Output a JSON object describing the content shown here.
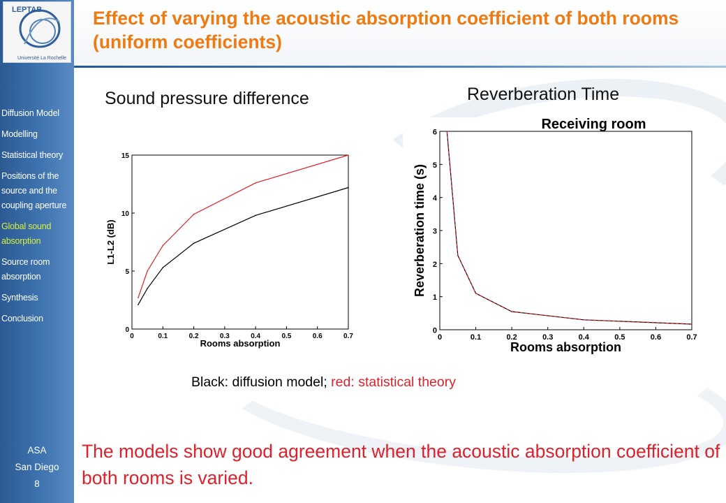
{
  "title": "Effect of varying the acoustic absorption coefficient of both rooms (uniform coefficients)",
  "logo_text": {
    "vertical": "LEPTAB",
    "bottom": "Université La Rochelle"
  },
  "nav": {
    "items": [
      "Diffusion Model",
      "Modelling",
      "Statistical theory",
      "Positions of the source and the coupling aperture",
      "Global sound absorption",
      "Source room absorption",
      "Synthesis",
      "Conclusion"
    ],
    "active_index": 4
  },
  "footer": {
    "line1": "ASA",
    "line2": "San Diego",
    "page": "8"
  },
  "headings": {
    "left": "Sound pressure difference",
    "right": "Reverberation Time"
  },
  "caption": {
    "black_part": "Black: diffusion model; ",
    "red_part": "red: statistical theory"
  },
  "conclusion": "The models show good agreement when the acoustic absorption coefficient of both rooms is varied.",
  "colors": {
    "title": "#f07a10",
    "accent_red": "#e11f2a",
    "sidebar": "#3f74b0",
    "nav_active": "#d9f03b"
  },
  "chart_data": [
    {
      "type": "line",
      "title": "",
      "xlabel": "Rooms absorption",
      "ylabel": "L1-L2 (dB)",
      "xlim": [
        0,
        0.7
      ],
      "ylim": [
        0,
        15
      ],
      "xticks": [
        "0",
        "0.1",
        "0.2",
        "0.3",
        "0.4",
        "0.5",
        "0.6",
        "0.7"
      ],
      "yticks": [
        "0",
        "5",
        "10",
        "15"
      ],
      "x": [
        0.02,
        0.05,
        0.1,
        0.2,
        0.4,
        0.7
      ],
      "series": [
        {
          "color": "#000000",
          "values": [
            2.1,
            3.5,
            5.3,
            7.4,
            9.8,
            12.2
          ]
        },
        {
          "color": "#e11f2a",
          "values": [
            2.7,
            5.0,
            7.2,
            9.9,
            12.6,
            15.0
          ]
        }
      ]
    },
    {
      "type": "line",
      "title": "Receiving room",
      "xlabel": "Rooms absorption",
      "ylabel": "Reverberation time (s)",
      "xlim": [
        0,
        0.7
      ],
      "ylim": [
        0,
        6
      ],
      "xticks": [
        "0",
        "0.1",
        "0.2",
        "0.3",
        "0.4",
        "0.5",
        "0.6",
        "0.7"
      ],
      "yticks": [
        "0",
        "1",
        "2",
        "3",
        "4",
        "5",
        "6"
      ],
      "x": [
        0.02,
        0.05,
        0.1,
        0.2,
        0.4,
        0.7
      ],
      "series": [
        {
          "color": "#000000",
          "style": "solid",
          "values": [
            6.0,
            2.25,
            1.1,
            0.55,
            0.3,
            0.17
          ]
        },
        {
          "color": "#e11f2a",
          "style": "dashed",
          "values": [
            6.0,
            2.25,
            1.1,
            0.55,
            0.3,
            0.17
          ]
        }
      ]
    }
  ]
}
